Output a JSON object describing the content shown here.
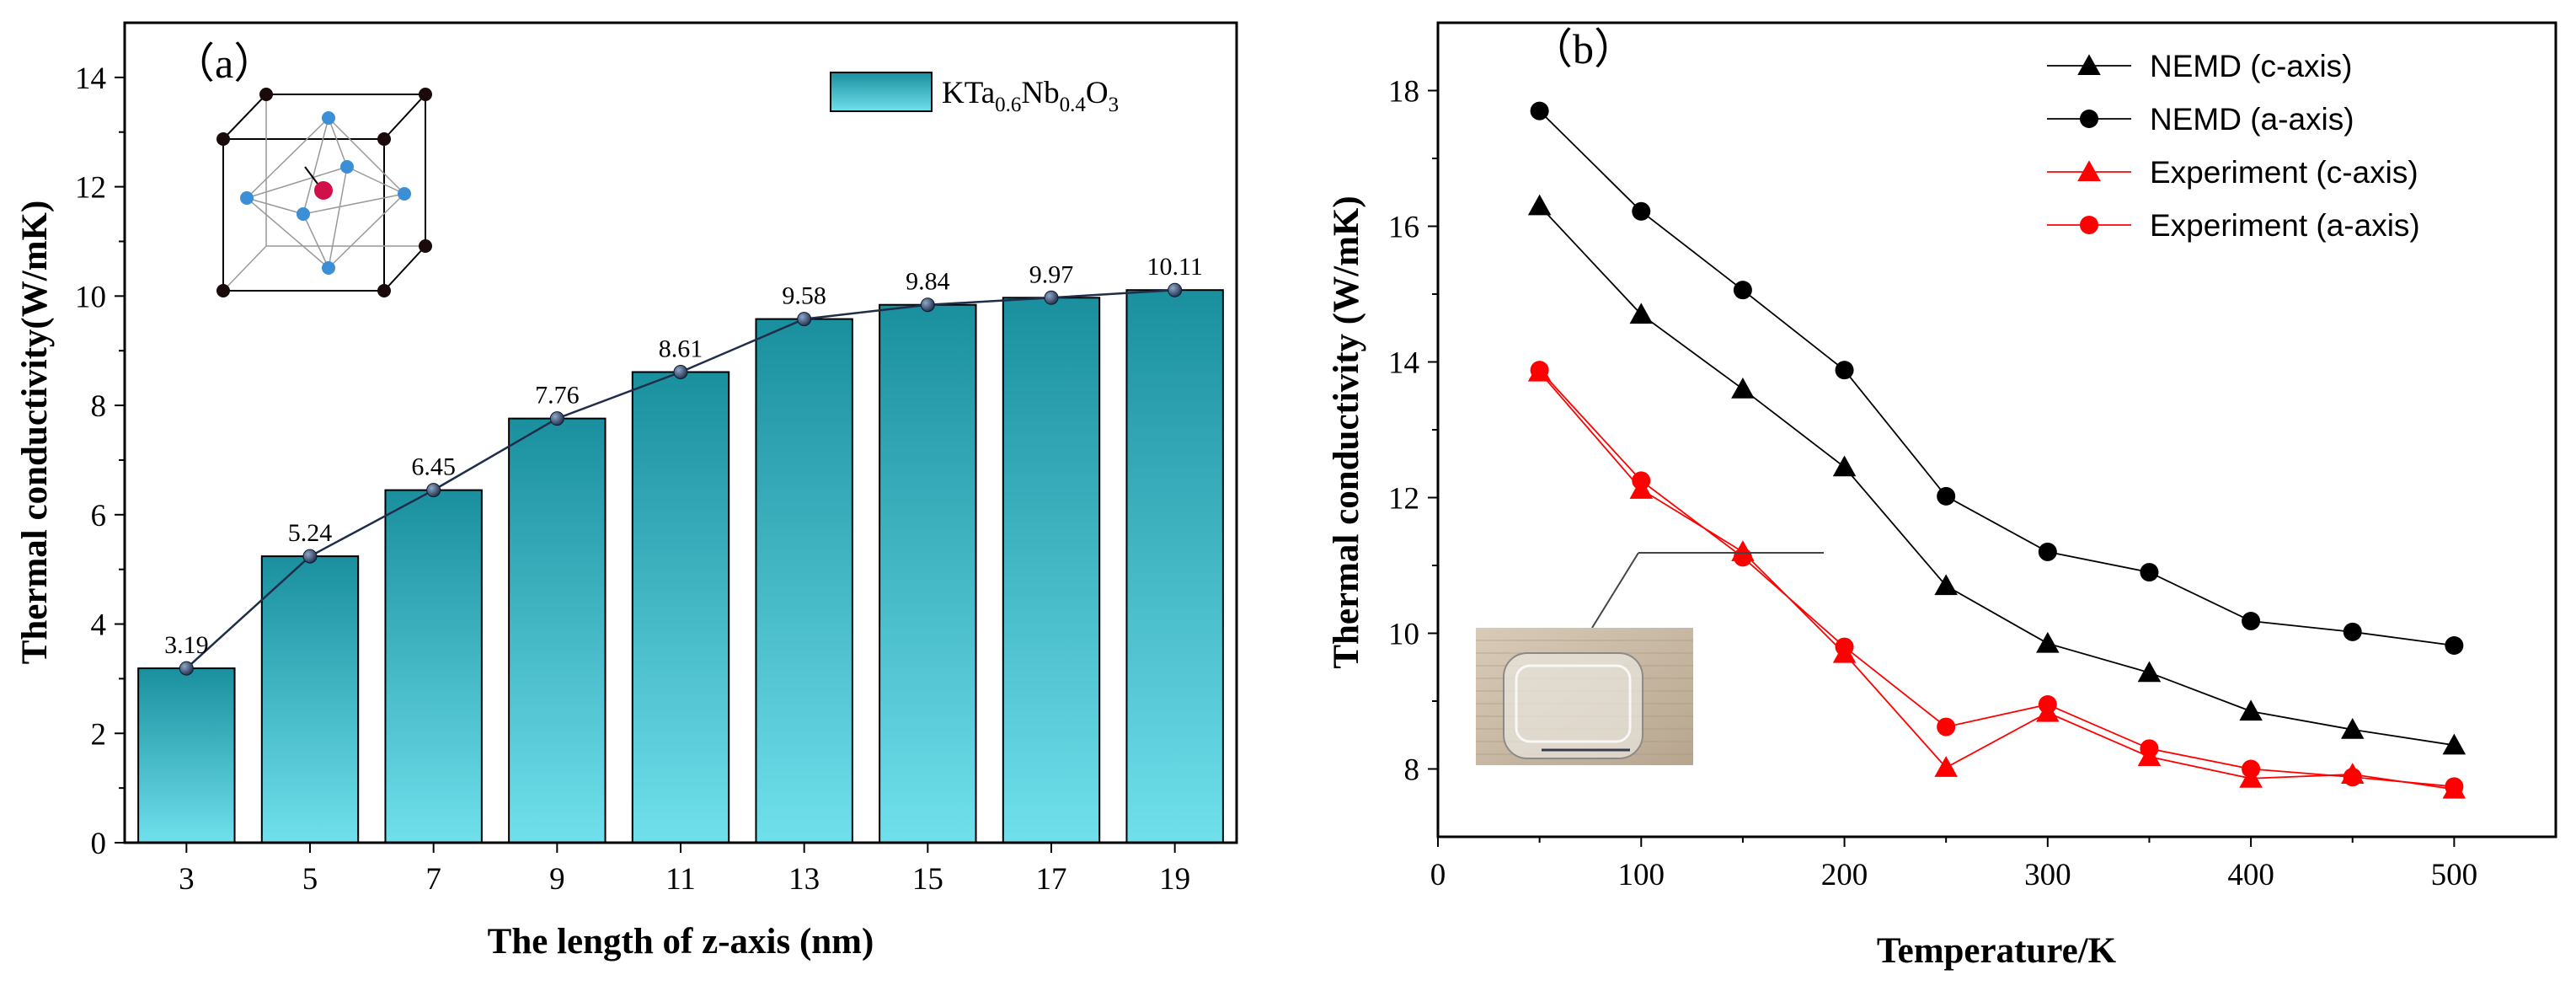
{
  "colors": {
    "bar_top": "#1a8f9e",
    "bar_bottom": "#6fe0ec",
    "line_a": "#1f2d4a",
    "nemd": "#000000",
    "experiment": "#ff0000",
    "inset_bg": "#c9b9a4"
  },
  "chart_data": [
    {
      "type": "bar",
      "panel_label": "（a）",
      "categories": [
        "3",
        "5",
        "7",
        "9",
        "11",
        "13",
        "15",
        "17",
        "19"
      ],
      "values": [
        3.19,
        5.24,
        6.45,
        7.76,
        8.61,
        9.58,
        9.84,
        9.97,
        10.11
      ],
      "data_labels": [
        "3.19",
        "5.24",
        "6.45",
        "7.76",
        "8.61",
        "9.58",
        "9.84",
        "9.97",
        "10.11"
      ],
      "xlabel": "The length of z-axis  (nm)",
      "ylabel": "Thermal conductivity(W/mK)",
      "ylim": [
        0,
        15
      ],
      "yticks": [
        0,
        2,
        4,
        6,
        8,
        10,
        12,
        14
      ],
      "legend": {
        "base": "KTa",
        "sub1": "0.6",
        "mid": "Nb",
        "sub2": "0.4",
        "end": "O",
        "sub3": "3",
        "position": "top-right"
      },
      "overlay_line": true,
      "inset": "crystal-unit-cell"
    },
    {
      "type": "line",
      "panel_label": "（b）",
      "x": [
        50,
        100,
        150,
        200,
        250,
        300,
        350,
        400,
        450,
        500
      ],
      "series": [
        {
          "name": "NEMD (c-axis)",
          "marker": "triangle",
          "color": "#000000",
          "values": [
            16.3,
            14.7,
            13.6,
            12.45,
            10.7,
            9.85,
            9.42,
            8.85,
            8.58,
            8.35
          ]
        },
        {
          "name": "NEMD (a-axis)",
          "marker": "circle",
          "color": "#000000",
          "values": [
            17.7,
            16.22,
            15.06,
            13.88,
            12.02,
            11.2,
            10.9,
            10.18,
            10.02,
            9.82
          ]
        },
        {
          "name": "Experiment (c-axis)",
          "marker": "triangle",
          "color": "#ff0000",
          "values": [
            13.85,
            12.12,
            11.2,
            9.7,
            8.02,
            8.83,
            8.18,
            7.86,
            7.92,
            7.7
          ]
        },
        {
          "name": "Experiment (a-axis)",
          "marker": "circle",
          "color": "#ff0000",
          "values": [
            13.88,
            12.25,
            11.12,
            9.8,
            8.62,
            8.95,
            8.3,
            8.0,
            7.88,
            7.74
          ]
        }
      ],
      "xlabel": "Temperature/K",
      "ylabel": "Thermal conductivity (W/mK)",
      "xlim": [
        0,
        550
      ],
      "ylim": [
        7,
        19
      ],
      "xticks": [
        0,
        100,
        200,
        300,
        400,
        500
      ],
      "yticks": [
        8,
        10,
        12,
        14,
        16,
        18
      ],
      "legend_position": "top-right",
      "inset": "crystal-photo"
    }
  ]
}
